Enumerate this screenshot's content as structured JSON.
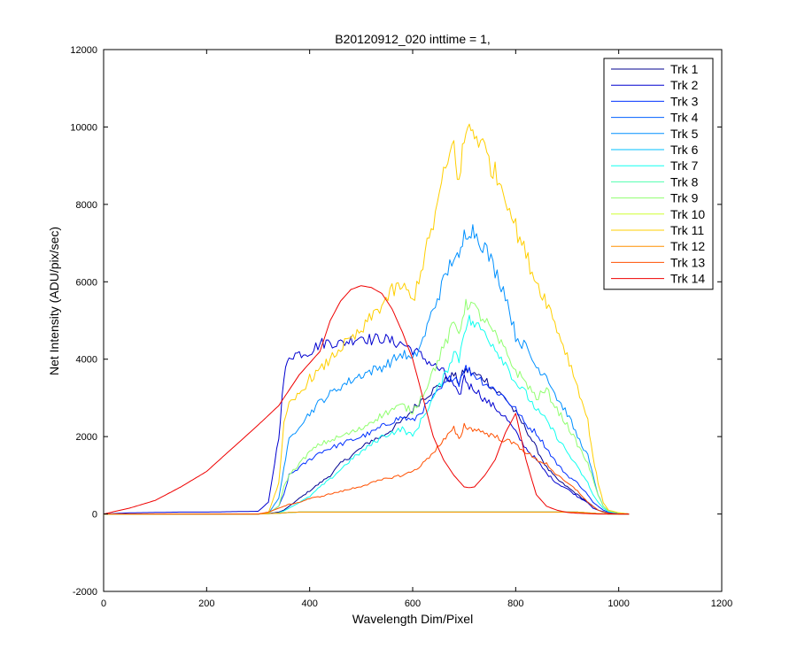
{
  "chart_data": {
    "type": "line",
    "title": "B20120912_020 inttime = 1,",
    "xlabel": "Wavelength Dim/Pixel",
    "ylabel": "Net Intensity (ADU/pix/sec)",
    "xlim": [
      0,
      1200
    ],
    "ylim": [
      -2000,
      12000
    ],
    "x_ticks": [
      0,
      200,
      400,
      600,
      800,
      1000,
      1200
    ],
    "y_ticks": [
      -2000,
      0,
      2000,
      4000,
      6000,
      8000,
      10000,
      12000
    ],
    "grid": false,
    "legend_position": "top-right",
    "x": [
      0,
      50,
      100,
      150,
      200,
      250,
      300,
      320,
      340,
      350,
      360,
      380,
      400,
      420,
      440,
      460,
      480,
      500,
      520,
      540,
      560,
      580,
      600,
      620,
      640,
      660,
      680,
      690,
      700,
      710,
      720,
      740,
      760,
      780,
      800,
      820,
      840,
      860,
      880,
      900,
      920,
      940,
      950,
      960,
      970,
      980,
      1000,
      1020
    ],
    "series": [
      {
        "name": "Trk 1",
        "color": "#00008f",
        "values": [
          0,
          0,
          0,
          0,
          0,
          0,
          0,
          10,
          50,
          100,
          200,
          400,
          600,
          800,
          1000,
          1300,
          1500,
          1700,
          1900,
          2000,
          2200,
          2400,
          2700,
          3000,
          3200,
          3400,
          3600,
          3400,
          3700,
          3700,
          3600,
          3500,
          3200,
          3000,
          2600,
          2200,
          1700,
          1200,
          900,
          700,
          500,
          300,
          200,
          100,
          60,
          30,
          10,
          0
        ]
      },
      {
        "name": "Trk 2",
        "color": "#0000cf",
        "values": [
          0,
          30,
          40,
          50,
          50,
          60,
          70,
          300,
          2000,
          3500,
          4100,
          4150,
          4200,
          4400,
          4450,
          4400,
          4500,
          4600,
          4500,
          4550,
          4450,
          4400,
          4250,
          4050,
          3850,
          3650,
          3300,
          3000,
          3550,
          3300,
          3250,
          2950,
          2750,
          2500,
          2100,
          1700,
          1400,
          1050,
          800,
          650,
          450,
          300,
          150,
          100,
          50,
          30,
          0,
          0
        ]
      },
      {
        "name": "Trk 3",
        "color": "#0030ff",
        "values": [
          0,
          0,
          0,
          0,
          0,
          0,
          0,
          20,
          200,
          500,
          1000,
          1200,
          1400,
          1600,
          1700,
          1800,
          1900,
          2000,
          2100,
          2250,
          2400,
          2500,
          2400,
          2700,
          3000,
          3300,
          3600,
          3400,
          3800,
          3700,
          3600,
          3400,
          3200,
          3000,
          2700,
          2300,
          2100,
          1700,
          1300,
          1000,
          800,
          500,
          300,
          200,
          100,
          50,
          20,
          0
        ]
      },
      {
        "name": "Trk 4",
        "color": "#0060ff",
        "values": [
          0,
          0,
          0,
          0,
          0,
          0,
          0,
          10,
          20,
          30,
          40,
          50,
          50,
          50,
          50,
          50,
          50,
          50,
          50,
          50,
          50,
          50,
          50,
          50,
          50,
          50,
          50,
          50,
          50,
          50,
          50,
          50,
          50,
          50,
          50,
          50,
          50,
          50,
          50,
          50,
          50,
          30,
          20,
          10,
          5,
          0,
          0,
          0
        ]
      },
      {
        "name": "Trk 5",
        "color": "#0090ff",
        "values": [
          0,
          0,
          0,
          0,
          0,
          0,
          0,
          20,
          400,
          1200,
          1900,
          2300,
          2600,
          2900,
          3100,
          3300,
          3450,
          3600,
          3700,
          3800,
          3950,
          4150,
          3950,
          4500,
          5300,
          6000,
          6700,
          6500,
          7200,
          7400,
          7300,
          6900,
          6300,
          5700,
          4600,
          4300,
          3800,
          3600,
          3000,
          2600,
          2000,
          1500,
          1000,
          500,
          200,
          80,
          30,
          0
        ]
      },
      {
        "name": "Trk 6",
        "color": "#00c0ff",
        "values": [
          0,
          0,
          0,
          0,
          0,
          0,
          0,
          10,
          20,
          30,
          40,
          50,
          50,
          50,
          50,
          50,
          50,
          50,
          50,
          50,
          50,
          50,
          50,
          50,
          50,
          50,
          50,
          50,
          50,
          50,
          50,
          50,
          50,
          50,
          50,
          50,
          50,
          50,
          50,
          50,
          50,
          30,
          20,
          10,
          5,
          0,
          0,
          0
        ]
      },
      {
        "name": "Trk 7",
        "color": "#10ffef",
        "values": [
          0,
          0,
          0,
          0,
          0,
          0,
          0,
          5,
          30,
          80,
          150,
          300,
          450,
          700,
          900,
          1150,
          1400,
          1600,
          1800,
          2000,
          2100,
          2200,
          2000,
          2500,
          3000,
          3500,
          4200,
          4000,
          4800,
          5000,
          4900,
          4700,
          4300,
          3900,
          3400,
          3100,
          2700,
          2400,
          2000,
          1600,
          1200,
          800,
          500,
          300,
          150,
          60,
          20,
          0
        ]
      },
      {
        "name": "Trk 8",
        "color": "#50ff af",
        "values": [
          0,
          0,
          0,
          0,
          0,
          0,
          0,
          10,
          20,
          30,
          40,
          50,
          50,
          50,
          50,
          50,
          50,
          50,
          50,
          50,
          50,
          50,
          50,
          50,
          50,
          50,
          50,
          50,
          50,
          50,
          50,
          50,
          50,
          50,
          50,
          50,
          50,
          50,
          50,
          50,
          50,
          30,
          20,
          10,
          5,
          0,
          0,
          0
        ]
      },
      {
        "name": "Trk 9",
        "color": "#90ff6f",
        "values": [
          0,
          0,
          0,
          0,
          0,
          0,
          0,
          20,
          200,
          700,
          1000,
          1300,
          1600,
          1800,
          1900,
          2000,
          2100,
          2200,
          2400,
          2550,
          2700,
          2800,
          2650,
          3100,
          3700,
          4300,
          4900,
          4700,
          5300,
          5500,
          5300,
          5000,
          4600,
          4200,
          3700,
          3400,
          3000,
          3200,
          2700,
          2300,
          1800,
          1300,
          900,
          500,
          200,
          80,
          30,
          0
        ]
      },
      {
        "name": "Trk 10",
        "color": "#cfff30",
        "values": [
          0,
          0,
          0,
          0,
          0,
          0,
          0,
          10,
          20,
          30,
          40,
          50,
          50,
          50,
          50,
          50,
          50,
          50,
          50,
          50,
          50,
          50,
          50,
          50,
          50,
          50,
          50,
          50,
          50,
          50,
          50,
          50,
          50,
          50,
          50,
          50,
          50,
          50,
          50,
          50,
          50,
          30,
          20,
          10,
          5,
          0,
          0,
          0
        ]
      },
      {
        "name": "Trk 11",
        "color": "#ffcf00",
        "values": [
          0,
          0,
          0,
          0,
          0,
          0,
          0,
          30,
          800,
          2300,
          2800,
          3100,
          3500,
          3700,
          4000,
          4300,
          4500,
          4700,
          5100,
          5400,
          5750,
          5900,
          5500,
          6500,
          7500,
          8700,
          9600,
          8500,
          9700,
          10000,
          9900,
          9400,
          8800,
          8300,
          7400,
          6700,
          6000,
          5500,
          4800,
          4100,
          3300,
          2400,
          1500,
          800,
          300,
          100,
          30,
          0
        ]
      },
      {
        "name": "Trk 12",
        "color": "#ff9000",
        "values": [
          0,
          0,
          0,
          0,
          0,
          0,
          0,
          10,
          20,
          30,
          40,
          50,
          50,
          50,
          50,
          50,
          50,
          50,
          50,
          50,
          50,
          50,
          50,
          50,
          50,
          50,
          50,
          50,
          50,
          50,
          50,
          50,
          50,
          50,
          50,
          50,
          50,
          50,
          50,
          50,
          50,
          30,
          20,
          10,
          5,
          0,
          0,
          0
        ]
      },
      {
        "name": "Trk 13",
        "color": "#ff5000",
        "values": [
          0,
          0,
          0,
          0,
          0,
          0,
          0,
          50,
          150,
          200,
          250,
          300,
          400,
          450,
          520,
          580,
          650,
          720,
          800,
          880,
          950,
          1000,
          1100,
          1300,
          1600,
          1900,
          2200,
          1900,
          2300,
          2200,
          2200,
          2100,
          2000,
          1900,
          1800,
          1600,
          1400,
          1300,
          1000,
          800,
          600,
          300,
          200,
          100,
          50,
          20,
          0,
          0
        ]
      },
      {
        "name": "Trk 14",
        "color": "#ef0000",
        "values": [
          0,
          150,
          350,
          700,
          1100,
          1700,
          2300,
          2550,
          2800,
          3000,
          3200,
          3600,
          3900,
          4200,
          5000,
          5500,
          5800,
          5900,
          5850,
          5700,
          5300,
          4700,
          4000,
          3000,
          2000,
          1400,
          1000,
          850,
          700,
          680,
          700,
          1000,
          1400,
          2100,
          2600,
          1400,
          500,
          200,
          100,
          40,
          20,
          10,
          5,
          0,
          0,
          0,
          0,
          0
        ]
      }
    ]
  }
}
